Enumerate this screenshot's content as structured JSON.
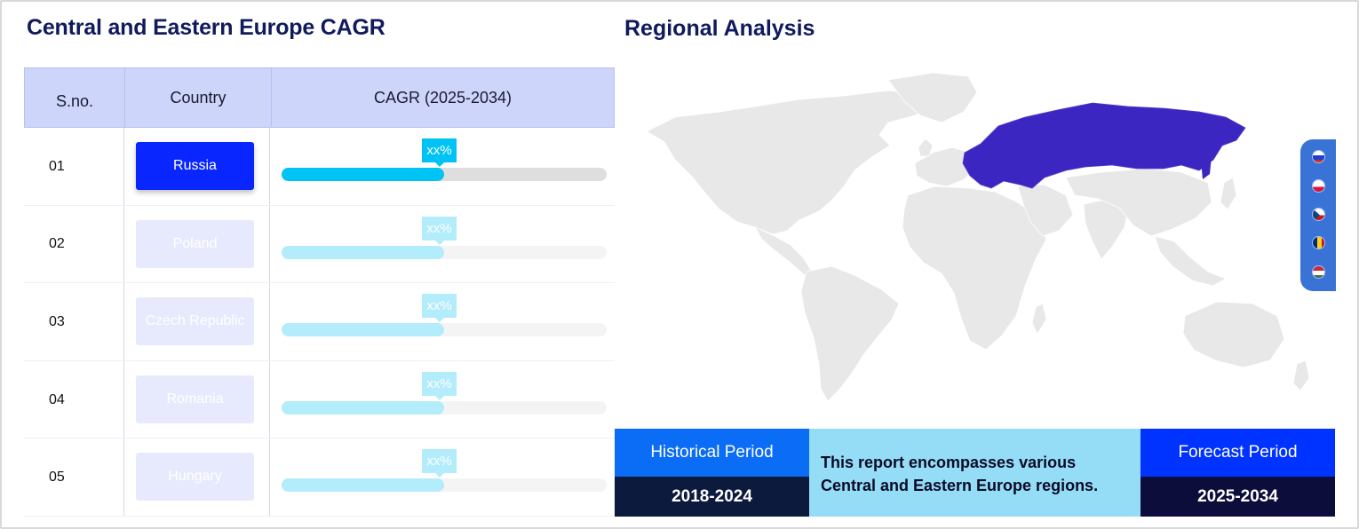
{
  "left_panel": {
    "title": "Central and Eastern Europe CAGR",
    "columns": [
      "S.no.",
      "Country",
      "CAGR (2025-2034)"
    ],
    "rows": [
      {
        "sno": "01",
        "country": "Russia",
        "cagr_label": "xx%",
        "progress": 0.5,
        "active": true
      },
      {
        "sno": "02",
        "country": "Poland",
        "cagr_label": "xx%",
        "progress": 0.5,
        "active": false
      },
      {
        "sno": "03",
        "country": "Czech Republic",
        "cagr_label": "xx%",
        "progress": 0.5,
        "active": false
      },
      {
        "sno": "04",
        "country": "Romania",
        "cagr_label": "xx%",
        "progress": 0.5,
        "active": false
      },
      {
        "sno": "05",
        "country": "Hungary",
        "cagr_label": "xx%",
        "progress": 0.5,
        "active": false
      }
    ]
  },
  "right_panel": {
    "title": "Regional Analysis",
    "map": {
      "highlighted_region": "Russia",
      "highlight_color": "#3b26c2",
      "land_color": "#e8e8e8"
    },
    "flag_icons": [
      "russia-flag-icon",
      "poland-flag-icon",
      "czech-republic-flag-icon",
      "romania-flag-icon",
      "hungary-flag-icon"
    ],
    "historical": {
      "label": "Historical Period",
      "years": "2018-2024"
    },
    "description": "This report encompasses various Central and Eastern Europe regions.",
    "forecast": {
      "label": "Forecast Period",
      "years": "2025-2034"
    }
  },
  "colors": {
    "accent": "#0a26ff",
    "bar_active": "#00c3f5",
    "bar_faded": "#b3ecfb",
    "header_bg": "#cdd5fb",
    "title": "#101a5c"
  }
}
